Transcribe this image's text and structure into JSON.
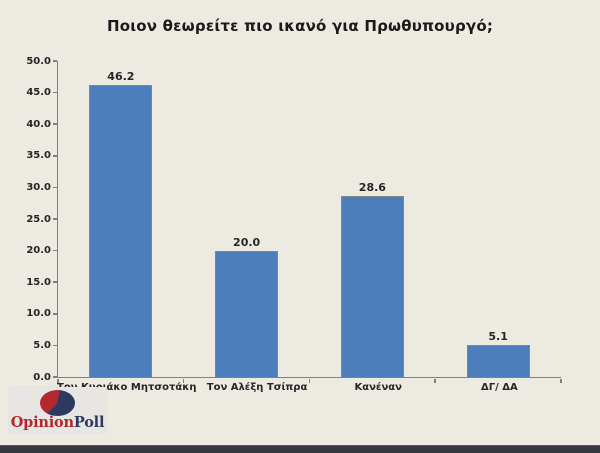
{
  "chart_data": {
    "type": "bar",
    "title": "Ποιον θεωρείτε πιο ικανό για Πρωθυπουργό;",
    "categories": [
      "Τον Κυριάκο Μητσοτάκη",
      "Τον Αλέξη Τσίπρα",
      "Κανέναν",
      "ΔΓ/ ΔΑ"
    ],
    "values": [
      46.2,
      20.0,
      28.6,
      5.1
    ],
    "value_labels": [
      "46.2",
      "20.0",
      "28.6",
      "5.1"
    ],
    "xlabel": "",
    "ylabel": "",
    "ylim": [
      0,
      50
    ],
    "ytick_step": 5,
    "ytick_labels": [
      "0.0",
      "5.0",
      "10.0",
      "15.0",
      "20.0",
      "25.0",
      "30.0",
      "35.0",
      "40.0",
      "45.0",
      "50.0"
    ],
    "grid": false,
    "legend": false,
    "bar_color": "#4C7EBB",
    "bar_border_color": "#848484",
    "axis_color": "#808080"
  },
  "logo": {
    "brand_primary": "Opinion",
    "brand_secondary": "Poll",
    "brand_primary_color": "#B3282D",
    "brand_secondary_color": "#2D3A60",
    "pie_wedge_color": "#B3282D",
    "pie_body_color": "#2D3A60",
    "background": "#E8E6E2"
  },
  "colors": {
    "page_background": "#EDEAE1",
    "footer_bar": "#36393D",
    "title_text": "#1A1A1A",
    "label_text": "#262626"
  }
}
